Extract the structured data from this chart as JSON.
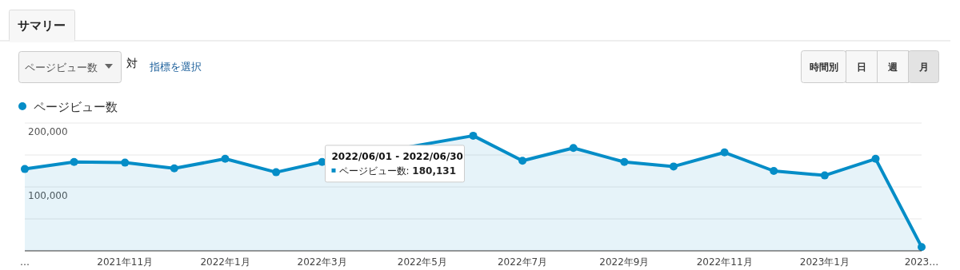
{
  "chart_data": {
    "type": "area",
    "title": "サマリー",
    "annotations": [
      "ページビュー数",
      "対",
      "指標を選択",
      "時間別",
      "日",
      "週",
      "月",
      {
        "text": "2022/06/01 - 2022/06/30\nページビュー数: 180,131",
        "x": "2022-06",
        "y": 180131
      }
    ],
    "x": [
      "2021-09",
      "2021-10",
      "2021-11",
      "2021-12",
      "2022-01",
      "2022-02",
      "2022-03",
      "2022-04",
      "2022-05",
      "2022-06",
      "2022-07",
      "2022-08",
      "2022-09",
      "2022-10",
      "2022-11",
      "2022-12",
      "2023-01",
      "2023-02",
      "2023-03"
    ],
    "series": [
      {
        "name": "ページビュー数",
        "color": "#058dc7",
        "values": [
          128000,
          139000,
          138000,
          129000,
          144000,
          123000,
          139000,
          null,
          null,
          180131,
          141000,
          161000,
          139000,
          132000,
          154000,
          125000,
          118000,
          144000,
          6000
        ]
      }
    ],
    "xlim": [
      "2021-09",
      "2023-03"
    ],
    "xticks": [
      {
        "value": "2021-09",
        "label": "…"
      },
      {
        "value": "2021-11",
        "label": "2021年11月"
      },
      {
        "value": "2022-01",
        "label": "2022年1月"
      },
      {
        "value": "2022-03",
        "label": "2022年3月"
      },
      {
        "value": "2022-05",
        "label": "2022年5月"
      },
      {
        "value": "2022-07",
        "label": "2022年7月"
      },
      {
        "value": "2022-09",
        "label": "2022年9月"
      },
      {
        "value": "2022-11",
        "label": "2022年11月"
      },
      {
        "value": "2023-01",
        "label": "2023年1月"
      },
      {
        "value": "2023-03",
        "label": "2023…"
      }
    ],
    "ylim": [
      0,
      200000
    ],
    "yticks": [
      {
        "value": 50000,
        "label": null
      },
      {
        "value": 100000,
        "label": "100,000"
      },
      {
        "value": 150000,
        "label": null
      },
      {
        "value": 200000,
        "label": "200,000"
      }
    ],
    "grid": "y",
    "legend": "top left",
    "marker": "circle",
    "line_style": "solid"
  }
}
